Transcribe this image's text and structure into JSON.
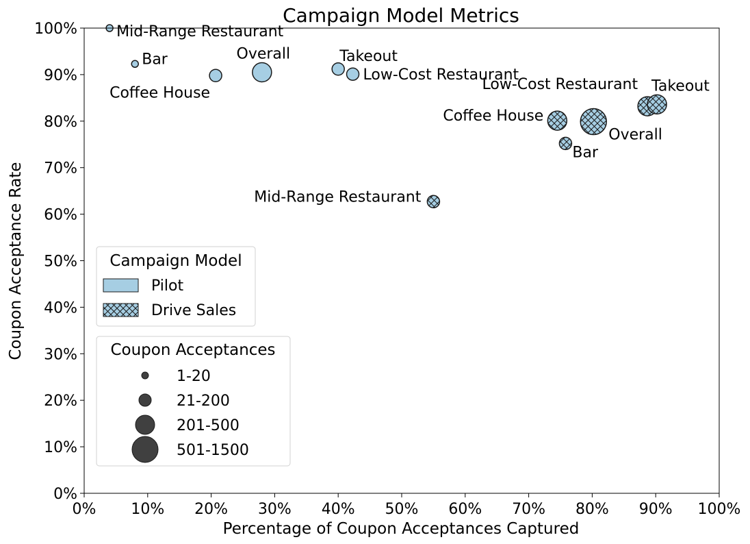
{
  "chart_data": {
    "type": "scatter",
    "title": "Campaign Model Metrics",
    "xlabel": "Percentage of Coupon Acceptances Captured",
    "ylabel": "Coupon Acceptance Rate",
    "xlim": [
      0,
      100
    ],
    "ylim": [
      0,
      100
    ],
    "x_ticks": [
      "0%",
      "10%",
      "20%",
      "30%",
      "40%",
      "50%",
      "60%",
      "70%",
      "80%",
      "90%",
      "100%"
    ],
    "y_ticks": [
      "0%",
      "10%",
      "20%",
      "30%",
      "40%",
      "50%",
      "60%",
      "70%",
      "80%",
      "90%",
      "100%"
    ],
    "grid": false,
    "marker_color": "#a6cee3",
    "edge_color": "#1a1a1a",
    "series": [
      {
        "name": "Pilot",
        "hatch": false,
        "points": [
          {
            "label": "Mid-Range Restaurant",
            "x": 4,
            "y": 100,
            "size_class": "1-20"
          },
          {
            "label": "Bar",
            "x": 8,
            "y": 92.3,
            "size_class": "1-20"
          },
          {
            "label": "Coffee House",
            "x": 20.7,
            "y": 89.8,
            "size_class": "21-200"
          },
          {
            "label": "Overall",
            "x": 28,
            "y": 90.5,
            "size_class": "201-500"
          },
          {
            "label": "Takeout",
            "x": 40,
            "y": 91.2,
            "size_class": "21-200"
          },
          {
            "label": "Low-Cost Restaurant",
            "x": 42.3,
            "y": 90.1,
            "size_class": "21-200"
          }
        ]
      },
      {
        "name": "Drive Sales",
        "hatch": true,
        "points": [
          {
            "label": "Mid-Range Restaurant",
            "x": 55,
            "y": 62.7,
            "size_class": "21-200"
          },
          {
            "label": "Bar",
            "x": 75.8,
            "y": 75.2,
            "size_class": "21-200"
          },
          {
            "label": "Coffee House",
            "x": 74.5,
            "y": 80.1,
            "size_class": "201-500"
          },
          {
            "label": "Overall",
            "x": 80.2,
            "y": 79.9,
            "size_class": "501-1500"
          },
          {
            "label": "Low-Cost Restaurant",
            "x": 88.7,
            "y": 83.2,
            "size_class": "201-500"
          },
          {
            "label": "Takeout",
            "x": 90.2,
            "y": 83.6,
            "size_class": "201-500"
          }
        ]
      }
    ],
    "legend_model": {
      "title": "Campaign Model",
      "entries": [
        "Pilot",
        "Drive Sales"
      ],
      "placement": "middle-left"
    },
    "legend_size": {
      "title": "Coupon Acceptances",
      "entries": [
        "1-20",
        "21-200",
        "201-500",
        "501-1500"
      ],
      "placement": "lower-left",
      "marker_color": "#404040"
    }
  }
}
